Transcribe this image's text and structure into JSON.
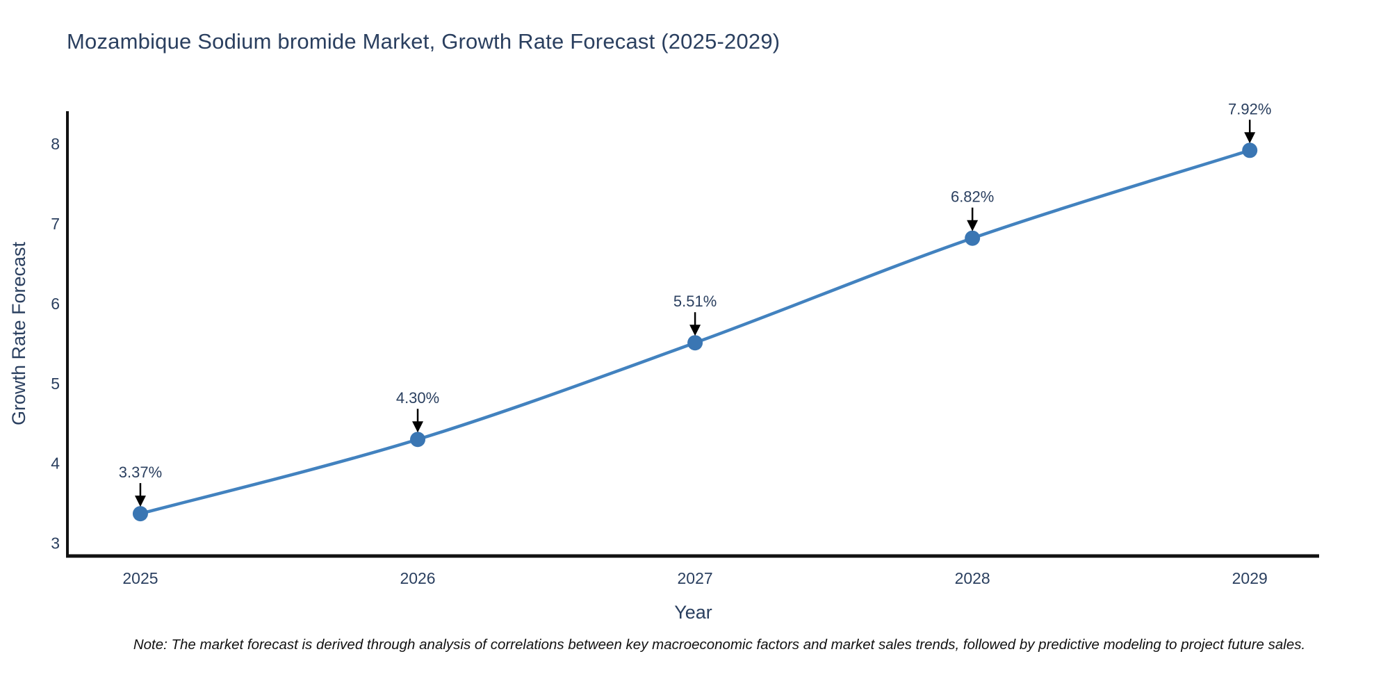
{
  "title": "Mozambique Sodium bromide Market, Growth Rate Forecast (2025-2029)",
  "note": "Note: The market forecast is derived through analysis of correlations between key macroeconomic factors and market sales trends, followed by predictive modeling to project future sales.",
  "chart_data": {
    "type": "line",
    "title": "Mozambique Sodium bromide Market, Growth Rate Forecast (2025-2029)",
    "x": [
      2025,
      2026,
      2027,
      2028,
      2029
    ],
    "values": [
      3.37,
      4.3,
      5.51,
      6.82,
      7.92
    ],
    "point_labels": [
      "3.37%",
      "4.30%",
      "5.51%",
      "6.82%",
      "7.92%"
    ],
    "xticks": [
      "2025",
      "2026",
      "2027",
      "2028",
      "2029"
    ],
    "yticks": [
      3,
      4,
      5,
      6,
      7,
      8
    ],
    "xlabel": "Year",
    "ylabel": "Growth Rate Forecast",
    "xlim": [
      2024.737,
      2029.25
    ],
    "ylim": [
      2.84,
      8.41
    ],
    "grid": false,
    "legend": "none",
    "colors": {
      "line": "#4282bf",
      "marker": "#3a76b3",
      "axis": "#111111",
      "tick_text": "#2a3f5f",
      "annotation_text": "#2a3f5f",
      "annotation_arrow": "#000000",
      "title_text": "#2a3f5f",
      "note_text": "#111111",
      "background": "#ffffff"
    }
  }
}
